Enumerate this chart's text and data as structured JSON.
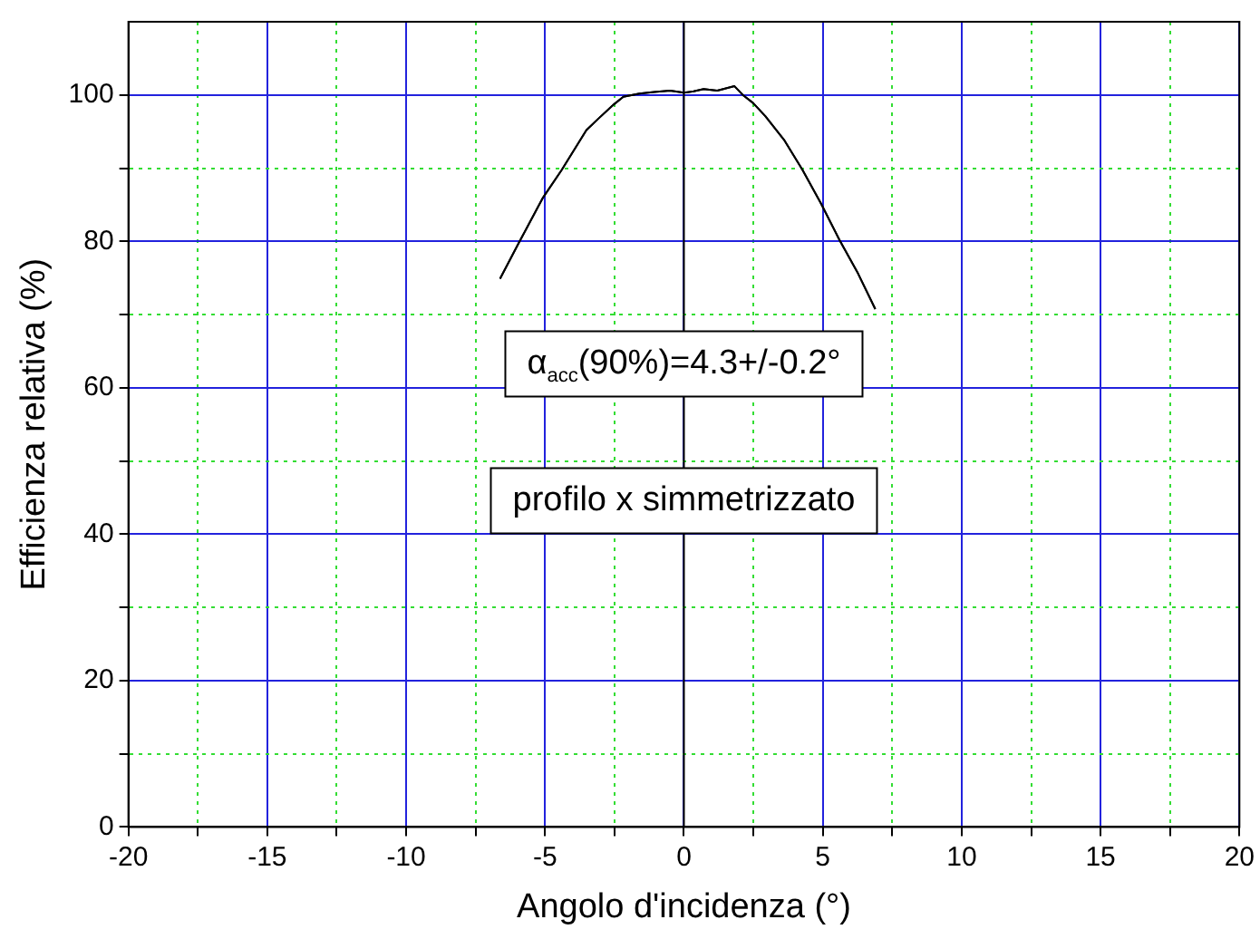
{
  "chart_data": {
    "type": "line",
    "xlabel": "Angolo d'incidenza (°)",
    "ylabel": "Efficienza relativa (%)",
    "x": [
      -6.62,
      -5.95,
      -5.07,
      -4.4,
      -3.51,
      -3.07,
      -2.51,
      -2.18,
      -1.6,
      -1.07,
      -0.5,
      0,
      0.35,
      0.71,
      1.2,
      1.82,
      2.15,
      2.49,
      2.93,
      3.6,
      4.27,
      4.93,
      5.6,
      6.27,
      6.89
    ],
    "series": [
      {
        "color": "#000000",
        "values": [
          74.9,
          79.75,
          86,
          89.75,
          95.2,
          96.8,
          98.75,
          99.75,
          100.2,
          100.4,
          100.6,
          100.3,
          100.5,
          100.8,
          100.6,
          101.2,
          99.9,
          98.9,
          97.1,
          93.9,
          89.75,
          85.2,
          80.2,
          75.6,
          70.75
        ]
      }
    ],
    "xlim": [
      -20,
      20
    ],
    "xticks": [
      -20,
      {
        "value": -17.5,
        "label": null
      },
      -15,
      {
        "value": -12.5,
        "label": null
      },
      -10,
      {
        "value": -7.5,
        "label": null
      },
      -5,
      {
        "value": -2.5,
        "label": null
      },
      0,
      {
        "value": 2.5,
        "label": null
      },
      5,
      {
        "value": 7.5,
        "label": null
      },
      10,
      {
        "value": 12.5,
        "label": null
      },
      15,
      {
        "value": 17.5,
        "label": null
      },
      20
    ],
    "ylim": [
      0,
      110
    ],
    "yticks": [
      0,
      {
        "value": 10,
        "label": null
      },
      20,
      {
        "value": 30,
        "label": null
      },
      40,
      {
        "value": 50,
        "label": null
      },
      60,
      {
        "value": 70,
        "label": null
      },
      80,
      {
        "value": 90,
        "label": null
      },
      100
    ],
    "grid": true,
    "legend": false,
    "marker": "none",
    "line_style": "solid",
    "ref_lines": [
      {
        "axis": "x",
        "value": 0,
        "color": "#000000"
      }
    ],
    "annotations": [
      "α$_{acc}$(90%)=4.3+/-0.2°",
      "profilo x simmetrizzato"
    ]
  }
}
